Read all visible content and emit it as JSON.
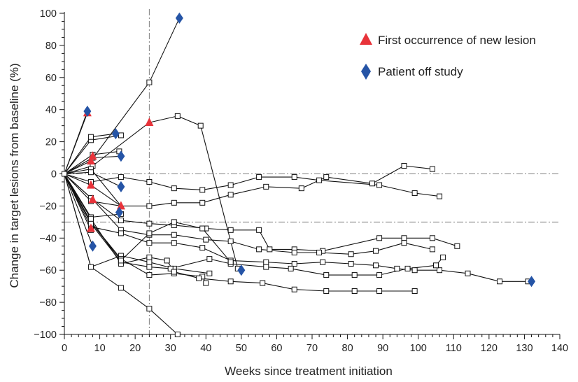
{
  "chart_data": {
    "type": "line",
    "xlabel": "Weeks since treatment initiation",
    "ylabel": "Change in target lesions from baseline (%)",
    "xlim": [
      0,
      140
    ],
    "ylim": [
      -100,
      100
    ],
    "xticks": [
      0,
      10,
      20,
      30,
      40,
      50,
      60,
      70,
      80,
      90,
      100,
      110,
      120,
      130,
      140
    ],
    "yticks": [
      -100,
      -80,
      -60,
      -40,
      -20,
      0,
      20,
      40,
      60,
      80,
      100
    ],
    "reference_lines": {
      "horizontal": [
        0,
        -30
      ],
      "vertical": [
        24
      ]
    },
    "legend": {
      "position": "top-right",
      "entries": [
        {
          "label": "First occurrence of new lesion",
          "marker": "triangle",
          "color": "#e8333a"
        },
        {
          "label": "Patient off study",
          "marker": "diamond",
          "color": "#2554a6"
        }
      ]
    },
    "colors": {
      "line": "#111111",
      "reference": "#808080",
      "new_lesion": "#e8333a",
      "off_study": "#2554a6"
    },
    "series": [
      {
        "points": [
          [
            0,
            0
          ],
          [
            6.5,
            38
          ]
        ]
      },
      {
        "points": [
          [
            0,
            0
          ],
          [
            6.5,
            39
          ]
        ]
      },
      {
        "points": [
          [
            0,
            0
          ],
          [
            7.5,
            21
          ],
          [
            16,
            24
          ]
        ]
      },
      {
        "points": [
          [
            0,
            0
          ],
          [
            7.5,
            23
          ],
          [
            14.5,
            25
          ]
        ]
      },
      {
        "points": [
          [
            0,
            0
          ],
          [
            8,
            10
          ],
          [
            16,
            11
          ]
        ]
      },
      {
        "points": [
          [
            0,
            0
          ],
          [
            8,
            12
          ],
          [
            15.5,
            14
          ],
          [
            16,
            11
          ]
        ]
      },
      {
        "points": [
          [
            0,
            0
          ],
          [
            7.5,
            8
          ],
          [
            24,
            57
          ],
          [
            32.5,
            97
          ]
        ]
      },
      {
        "points": [
          [
            0,
            0
          ],
          [
            8,
            5
          ],
          [
            24,
            32
          ],
          [
            32,
            36
          ],
          [
            38.5,
            30
          ],
          [
            49,
            -59
          ]
        ]
      },
      {
        "points": [
          [
            0,
            0
          ],
          [
            7.5,
            3
          ],
          [
            16,
            -20
          ],
          [
            24,
            -20
          ],
          [
            31,
            -18
          ],
          [
            39,
            -18
          ],
          [
            47,
            -13
          ],
          [
            57,
            -8
          ],
          [
            67,
            -9
          ],
          [
            74,
            -2
          ],
          [
            87,
            -6
          ],
          [
            96,
            5
          ],
          [
            104,
            3
          ]
        ]
      },
      {
        "points": [
          [
            0,
            0
          ],
          [
            7.5,
            1
          ],
          [
            16,
            -8
          ]
        ]
      },
      {
        "points": [
          [
            0,
            0
          ],
          [
            7.5,
            -5
          ],
          [
            16,
            -2
          ],
          [
            24,
            -5
          ],
          [
            31,
            -9
          ],
          [
            39,
            -10
          ],
          [
            47,
            -7
          ],
          [
            55,
            -2
          ],
          [
            65,
            -2
          ],
          [
            72,
            -4
          ],
          [
            89,
            -7
          ],
          [
            99,
            -12
          ],
          [
            106,
            -14
          ]
        ]
      },
      {
        "points": [
          [
            0,
            0
          ],
          [
            7.5,
            -7
          ],
          [
            16,
            -20
          ]
        ]
      },
      {
        "points": [
          [
            0,
            0
          ],
          [
            7.5,
            -15
          ],
          [
            16,
            -29
          ],
          [
            24,
            -31
          ],
          [
            31,
            -32
          ],
          [
            40,
            -34
          ],
          [
            47,
            -35
          ],
          [
            55,
            -35
          ],
          [
            58,
            -47
          ],
          [
            65,
            -47
          ],
          [
            73,
            -48
          ],
          [
            89,
            -40
          ],
          [
            96,
            -40
          ],
          [
            104,
            -40
          ],
          [
            111,
            -45
          ]
        ]
      },
      {
        "points": [
          [
            0,
            0
          ],
          [
            7.5,
            -17
          ],
          [
            16,
            -20
          ]
        ]
      },
      {
        "points": [
          [
            0,
            0
          ],
          [
            8,
            -16
          ],
          [
            16,
            -35
          ],
          [
            24,
            -38
          ],
          [
            31,
            -38
          ],
          [
            40,
            -41
          ],
          [
            47,
            -42
          ],
          [
            55,
            -47
          ],
          [
            65,
            -49
          ],
          [
            72,
            -49
          ],
          [
            81,
            -50
          ],
          [
            88,
            -48
          ],
          [
            96,
            -43
          ],
          [
            104,
            -47
          ]
        ]
      },
      {
        "points": [
          [
            0,
            0
          ],
          [
            7.5,
            -27
          ],
          [
            16,
            -25
          ]
        ]
      },
      {
        "points": [
          [
            0,
            0
          ],
          [
            7.5,
            -33
          ],
          [
            16,
            -37
          ],
          [
            24,
            -43
          ],
          [
            31,
            -43
          ],
          [
            39,
            -46
          ],
          [
            47,
            -54
          ],
          [
            57,
            -55
          ],
          [
            65,
            -56
          ],
          [
            73,
            -55
          ],
          [
            81,
            -56
          ],
          [
            88,
            -57
          ],
          [
            94,
            -59
          ],
          [
            99,
            -60
          ],
          [
            106,
            -60
          ],
          [
            114,
            -62
          ],
          [
            123,
            -67
          ],
          [
            131,
            -67
          ]
        ]
      },
      {
        "points": [
          [
            0,
            0
          ],
          [
            7.5,
            -35
          ]
        ]
      },
      {
        "points": [
          [
            0,
            0
          ],
          [
            8,
            -45
          ]
        ]
      },
      {
        "points": [
          [
            0,
            0
          ],
          [
            7.5,
            -58
          ],
          [
            16,
            -51
          ],
          [
            24,
            -55
          ],
          [
            31,
            -59
          ],
          [
            41,
            -62
          ]
        ]
      },
      {
        "points": [
          [
            0,
            0
          ],
          [
            7.5,
            -58
          ],
          [
            16,
            -71
          ],
          [
            24,
            -84
          ],
          [
            32,
            -100
          ]
        ]
      },
      {
        "points": [
          [
            0,
            0
          ],
          [
            7.5,
            -30
          ],
          [
            16,
            -53
          ],
          [
            24,
            -63
          ],
          [
            31,
            -62
          ],
          [
            39,
            -64
          ],
          [
            40,
            -68
          ]
        ]
      },
      {
        "points": [
          [
            0,
            0
          ],
          [
            7.5,
            -31
          ],
          [
            16,
            -55
          ],
          [
            24,
            -58
          ],
          [
            30,
            -59
          ],
          [
            41,
            -53
          ],
          [
            47,
            -56
          ],
          [
            57,
            -58
          ],
          [
            64,
            -59
          ],
          [
            74,
            -63
          ],
          [
            82,
            -63
          ],
          [
            89,
            -63
          ],
          [
            97,
            -59
          ],
          [
            105,
            -57
          ],
          [
            107,
            -52
          ]
        ]
      },
      {
        "points": [
          [
            0,
            0
          ],
          [
            7.5,
            -28
          ],
          [
            16,
            -56
          ],
          [
            24,
            -52
          ],
          [
            29,
            -54
          ],
          [
            31,
            -61
          ],
          [
            38,
            -65
          ],
          [
            47,
            -67
          ],
          [
            56,
            -68
          ],
          [
            65,
            -72
          ],
          [
            74,
            -73
          ],
          [
            82,
            -73
          ],
          [
            89,
            -73
          ],
          [
            99,
            -73
          ]
        ]
      },
      {
        "points": [
          [
            0,
            0
          ],
          [
            7.5,
            -30
          ],
          [
            16,
            -54
          ],
          [
            24,
            -37
          ],
          [
            31,
            -30
          ],
          [
            39,
            -34
          ],
          [
            47,
            -55
          ]
        ]
      }
    ],
    "new_lesion_markers": [
      [
        6.5,
        38
      ],
      [
        7.5,
        8
      ],
      [
        8,
        11
      ],
      [
        7.5,
        -7
      ],
      [
        8,
        -16
      ],
      [
        7.5,
        -34
      ],
      [
        16,
        -20
      ],
      [
        24,
        32
      ]
    ],
    "off_study_markers": [
      [
        6.5,
        39
      ],
      [
        14.5,
        25
      ],
      [
        16,
        11
      ],
      [
        16,
        -8
      ],
      [
        15.5,
        -24
      ],
      [
        8,
        -45
      ],
      [
        32.5,
        97
      ],
      [
        50,
        -60
      ],
      [
        132,
        -67
      ]
    ]
  }
}
